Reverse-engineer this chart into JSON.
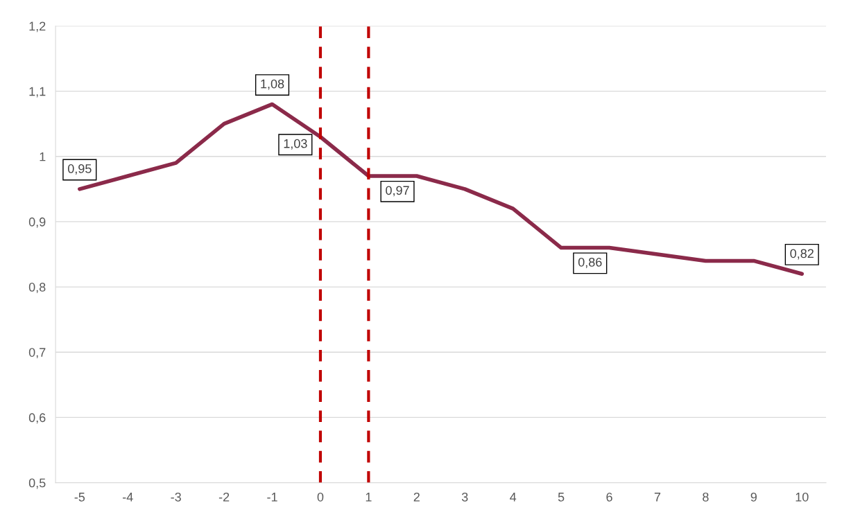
{
  "chart_data": {
    "type": "line",
    "x": [
      -5,
      -4,
      -3,
      -2,
      -1,
      0,
      1,
      2,
      3,
      4,
      5,
      6,
      7,
      8,
      9,
      10
    ],
    "series": [
      {
        "color": "#8b2a4a",
        "values": [
          0.95,
          0.97,
          0.99,
          1.05,
          1.08,
          1.03,
          0.97,
          0.97,
          0.95,
          0.92,
          0.86,
          0.86,
          0.85,
          0.84,
          0.84,
          0.82
        ],
        "value_labels": [
          "0,95",
          null,
          null,
          null,
          "1,08",
          "1,03",
          "0,97",
          null,
          null,
          null,
          "0,86",
          null,
          null,
          null,
          null,
          "0,82"
        ]
      }
    ],
    "xlim": [
      -5.5,
      10.5
    ],
    "xticks": [
      -5,
      -4,
      -3,
      -2,
      -1,
      0,
      1,
      2,
      3,
      4,
      5,
      6,
      7,
      8,
      9,
      10
    ],
    "ylim": [
      0.5,
      1.2
    ],
    "yticks": [
      {
        "value": 0.5,
        "label": "0,5"
      },
      {
        "value": 0.6,
        "label": "0,6"
      },
      {
        "value": 0.7,
        "label": "0,7"
      },
      {
        "value": 0.8,
        "label": "0,8"
      },
      {
        "value": 0.9,
        "label": "0,9"
      },
      {
        "value": 1.0,
        "label": "1"
      },
      {
        "value": 1.1,
        "label": "1,1"
      },
      {
        "value": 1.2,
        "label": "1,2"
      }
    ],
    "grid": "y",
    "marker": "none",
    "line_style": "solid",
    "ref_lines": [
      {
        "axis": "x",
        "value": 0,
        "color": "#c00000",
        "line_style": "dashed"
      },
      {
        "axis": "x",
        "value": 1,
        "color": "#c00000",
        "line_style": "dashed"
      }
    ]
  }
}
